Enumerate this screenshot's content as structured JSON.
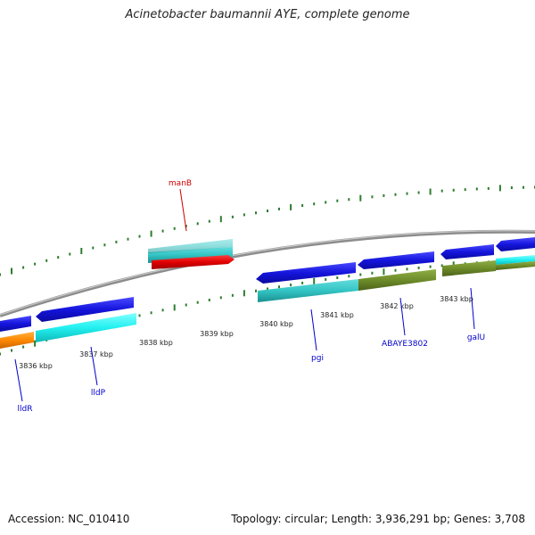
{
  "title": "Acinetobacter baumannii AYE, complete genome",
  "footer": {
    "accession": "Accession: NC_010410",
    "summary": "Topology: circular; Length: 3,936,291 bp; Genes: 3,708"
  },
  "ticks": [
    {
      "label": "3836 kbp"
    },
    {
      "label": "3837 kbp"
    },
    {
      "label": "3838 kbp"
    },
    {
      "label": "3839 kbp"
    },
    {
      "label": "3840 kbp"
    },
    {
      "label": "3841 kbp"
    },
    {
      "label": "3842 kbp"
    },
    {
      "label": "3843 kbp"
    }
  ],
  "gene_labels": [
    {
      "name": "manB",
      "color": "#cc0000"
    },
    {
      "name": "lldR",
      "color": "#0000cc"
    },
    {
      "name": "lldP",
      "color": "#0000cc"
    },
    {
      "name": "pgi",
      "color": "#0000cc"
    },
    {
      "name": "ABAYE3802",
      "color": "#0000cc"
    },
    {
      "name": "galU",
      "color": "#0000cc"
    }
  ],
  "colors": {
    "backbone": "#8c8c8c",
    "cds": "#1515dd",
    "cds_rna": "#dd0000",
    "feature_cyan": "#33cccc",
    "feature_bright_cyan": "#22f0f0",
    "feature_olive": "#6e8c2a",
    "feature_orange": "#ff8800",
    "tick": "#2e7d2e"
  }
}
